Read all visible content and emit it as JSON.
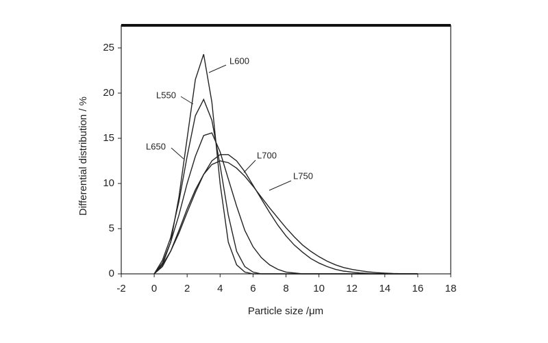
{
  "chart_data": {
    "type": "line",
    "x_label": "Particle size /μm",
    "y_label": "Differential distribution / %",
    "xlim": [
      -2,
      18
    ],
    "xticks": [
      -2,
      0,
      2,
      4,
      6,
      8,
      10,
      12,
      14,
      16,
      18
    ],
    "ylim": [
      0,
      27.5
    ],
    "yticks": [
      0,
      5,
      10,
      15,
      20,
      25
    ],
    "x": [
      0,
      0.5,
      1,
      1.5,
      2,
      2.5,
      3,
      3.5,
      4,
      4.5,
      5,
      5.5,
      6,
      6.5,
      7,
      7.5,
      8,
      8.5,
      9,
      9.5,
      10,
      10.5,
      11,
      11.5,
      12,
      12.5,
      13,
      13.5,
      14,
      14.5,
      15,
      15.5,
      16
    ],
    "series": [
      {
        "name": "L600",
        "color": "#222222",
        "values": [
          0,
          1,
          3.5,
          8.5,
          15,
          21.5,
          24.3,
          19,
          10,
          3.5,
          1,
          0.2,
          0,
          0,
          0,
          0,
          0,
          0,
          0,
          0,
          0,
          0,
          0,
          0,
          0,
          0,
          0,
          0,
          0,
          0,
          0,
          0,
          0
        ]
      },
      {
        "name": "L550",
        "color": "#222222",
        "values": [
          0,
          1.5,
          4,
          8,
          13,
          17.5,
          19.3,
          17,
          12,
          6.5,
          2.5,
          0.8,
          0.2,
          0,
          0,
          0,
          0,
          0,
          0,
          0,
          0,
          0,
          0,
          0,
          0,
          0,
          0,
          0,
          0,
          0,
          0,
          0,
          0
        ]
      },
      {
        "name": "L650",
        "color": "#222222",
        "values": [
          0,
          1.2,
          3.5,
          6.5,
          10,
          13,
          15.3,
          15.6,
          13.5,
          10.5,
          7.5,
          4.8,
          3,
          1.8,
          1,
          0.5,
          0.2,
          0.1,
          0,
          0,
          0,
          0,
          0,
          0,
          0,
          0,
          0,
          0,
          0,
          0,
          0,
          0,
          0
        ]
      },
      {
        "name": "L700",
        "color": "#222222",
        "values": [
          0,
          1,
          2.5,
          4.5,
          6.8,
          9,
          11,
          12.5,
          13.2,
          13.2,
          12.5,
          11.3,
          9.8,
          8.3,
          6.8,
          5.4,
          4.2,
          3.2,
          2.4,
          1.7,
          1.2,
          0.8,
          0.5,
          0.3,
          0.2,
          0.1,
          0.05,
          0,
          0,
          0,
          0,
          0,
          0
        ]
      },
      {
        "name": "L750",
        "color": "#222222",
        "values": [
          0,
          0.8,
          2.5,
          4.8,
          7.2,
          9.3,
          11,
          12.1,
          12.5,
          12.3,
          11.7,
          10.8,
          9.7,
          8.5,
          7.3,
          6.2,
          5.1,
          4.1,
          3.2,
          2.5,
          1.9,
          1.4,
          1,
          0.7,
          0.5,
          0.35,
          0.22,
          0.14,
          0.08,
          0.04,
          0.02,
          0.01,
          0
        ]
      }
    ]
  }
}
